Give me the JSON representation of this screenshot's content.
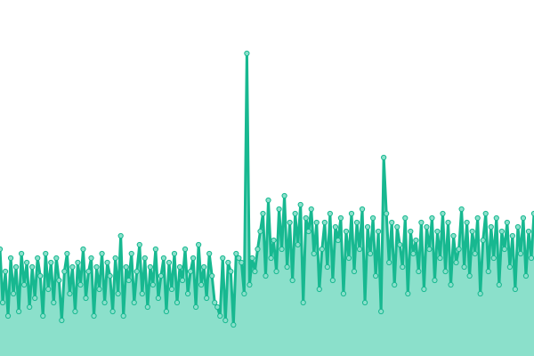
{
  "chart_data": {
    "type": "area",
    "color": "#17b890",
    "fill": "#8be0cb",
    "ylim": [
      0,
      400
    ],
    "values": [
      120,
      60,
      95,
      45,
      110,
      70,
      100,
      50,
      115,
      80,
      105,
      55,
      100,
      65,
      110,
      90,
      45,
      115,
      75,
      105,
      60,
      110,
      85,
      40,
      95,
      115,
      70,
      100,
      50,
      105,
      80,
      120,
      65,
      95,
      110,
      45,
      100,
      75,
      115,
      60,
      105,
      90,
      50,
      110,
      70,
      135,
      45,
      100,
      85,
      115,
      60,
      95,
      125,
      70,
      110,
      55,
      100,
      80,
      120,
      65,
      90,
      110,
      50,
      105,
      75,
      115,
      60,
      100,
      85,
      120,
      70,
      95,
      110,
      55,
      125,
      80,
      100,
      65,
      115,
      90,
      60,
      55,
      45,
      110,
      40,
      105,
      95,
      35,
      115,
      110,
      105,
      70,
      340,
      80,
      110,
      95,
      120,
      140,
      160,
      90,
      175,
      110,
      130,
      95,
      165,
      120,
      180,
      100,
      150,
      85,
      160,
      125,
      170,
      60,
      155,
      140,
      165,
      115,
      150,
      75,
      120,
      150,
      100,
      160,
      85,
      145,
      130,
      155,
      70,
      140,
      110,
      160,
      95,
      150,
      120,
      165,
      60,
      145,
      115,
      155,
      90,
      140,
      50,
      223,
      160,
      105,
      150,
      80,
      145,
      125,
      100,
      155,
      70,
      140,
      115,
      130,
      95,
      150,
      75,
      145,
      120,
      155,
      85,
      140,
      110,
      160,
      95,
      150,
      80,
      135,
      105,
      120,
      165,
      100,
      150,
      90,
      140,
      115,
      155,
      70,
      130,
      160,
      95,
      145,
      110,
      155,
      80,
      140,
      120,
      150,
      100,
      135,
      75,
      145,
      115,
      155,
      90,
      140,
      110,
      160
    ]
  }
}
